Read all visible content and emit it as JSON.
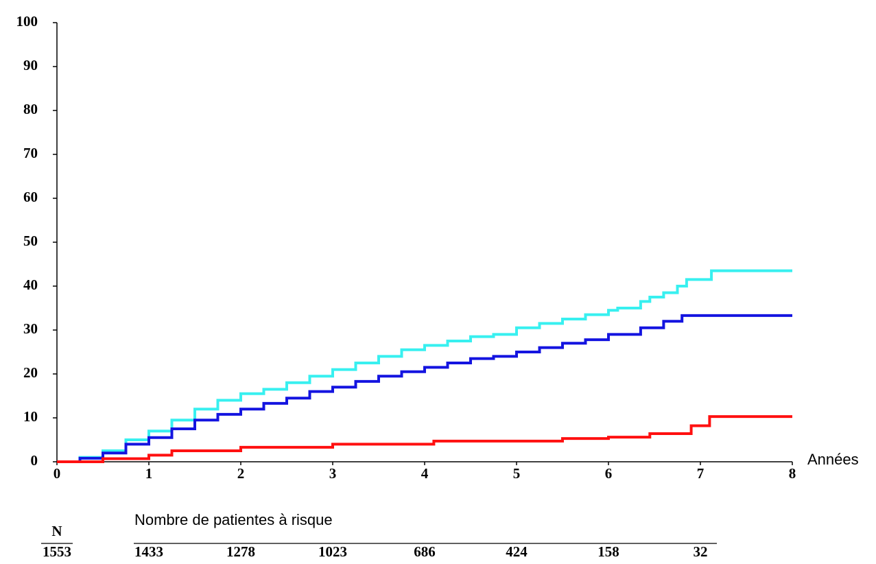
{
  "chart_data": {
    "type": "step",
    "xlabel": "Années",
    "xlim": [
      0,
      8
    ],
    "xticks": [
      0,
      1,
      2,
      3,
      4,
      5,
      6,
      7,
      8
    ],
    "ylim": [
      0,
      100
    ],
    "yticks": [
      0,
      10,
      20,
      30,
      40,
      50,
      60,
      70,
      80,
      90,
      100
    ],
    "grid": false,
    "series": [
      {
        "color": "#38f0f0",
        "x": [
          0,
          0.25,
          0.5,
          0.75,
          1,
          1.25,
          1.5,
          1.75,
          2,
          2.25,
          2.5,
          2.75,
          3,
          3.25,
          3.5,
          3.75,
          4,
          4.25,
          4.5,
          4.75,
          5,
          5.25,
          5.5,
          5.75,
          6,
          6.1,
          6.35,
          6.45,
          6.6,
          6.75,
          6.85,
          7.12,
          8
        ],
        "values": [
          0,
          1,
          2.5,
          5,
          7,
          9.5,
          12,
          14,
          15.5,
          16.5,
          18,
          19.5,
          21,
          22.5,
          24,
          25.5,
          26.5,
          27.5,
          28.5,
          29,
          30.5,
          31.5,
          32.5,
          33.5,
          34.5,
          35,
          36.5,
          37.5,
          38.5,
          40,
          41.5,
          43.5,
          43.5
        ]
      },
      {
        "color": "#1414e0",
        "x": [
          0,
          0.25,
          0.5,
          0.75,
          1,
          1.25,
          1.5,
          1.75,
          2,
          2.25,
          2.5,
          2.75,
          3,
          3.25,
          3.5,
          3.75,
          4,
          4.25,
          4.5,
          4.75,
          5,
          5.25,
          5.5,
          5.75,
          6,
          6.35,
          6.6,
          6.8,
          8
        ],
        "values": [
          0,
          0.8,
          2,
          4,
          5.5,
          7.5,
          9.5,
          10.8,
          12,
          13.3,
          14.5,
          16,
          17,
          18.3,
          19.5,
          20.5,
          21.5,
          22.5,
          23.5,
          24,
          25,
          26,
          27,
          27.8,
          29,
          30.5,
          32,
          33.3,
          33.3
        ]
      },
      {
        "color": "#ff1010",
        "x": [
          0,
          0.5,
          1,
          1.25,
          2,
          3,
          4.1,
          5.5,
          6,
          6.45,
          6.9,
          7.1,
          8
        ],
        "values": [
          0,
          0.7,
          1.5,
          2.5,
          3.3,
          4,
          4.7,
          5.3,
          5.6,
          6.4,
          8.2,
          10.3,
          10.3
        ]
      }
    ],
    "at_risk": {
      "title": "Nombre de patientes à risque",
      "header": "N",
      "total": 1553,
      "x": [
        1,
        2,
        3,
        4,
        5,
        6,
        7
      ],
      "counts": [
        1433,
        1278,
        1023,
        686,
        424,
        158,
        32
      ]
    }
  }
}
